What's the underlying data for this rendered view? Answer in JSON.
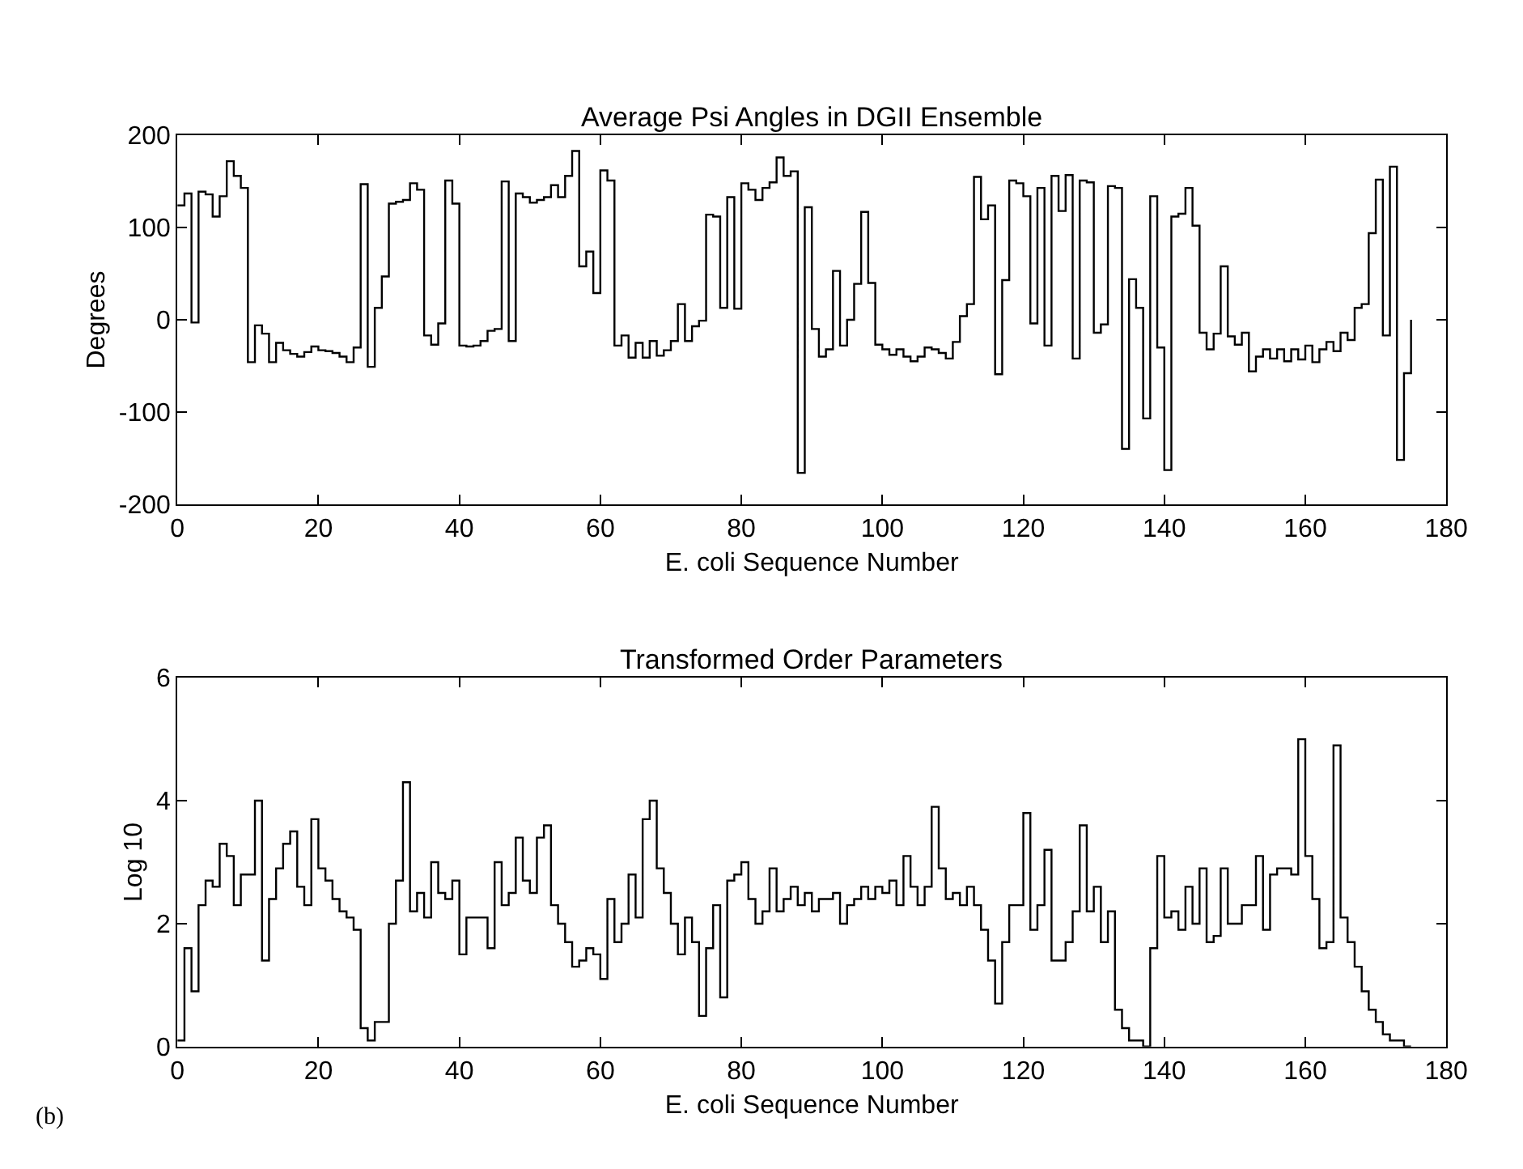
{
  "chart_data": [
    {
      "type": "step",
      "title": "Average Psi Angles in DGII Ensemble",
      "xlabel": "E. coli Sequence Number",
      "ylabel": "Degrees",
      "xlim": [
        0,
        180
      ],
      "xticks": [
        0,
        20,
        40,
        60,
        80,
        100,
        120,
        140,
        160,
        180
      ],
      "ylim": [
        -200,
        200
      ],
      "yticks": [
        -200,
        -100,
        0,
        100,
        200
      ],
      "marker": "none",
      "line_style": "solid",
      "x": [
        0,
        1,
        2,
        3,
        4,
        5,
        6,
        7,
        8,
        9,
        10,
        11,
        12,
        13,
        14,
        15,
        16,
        17,
        18,
        19,
        20,
        21,
        22,
        23,
        24,
        25,
        26,
        27,
        28,
        29,
        30,
        31,
        32,
        33,
        34,
        35,
        36,
        37,
        38,
        39,
        40,
        41,
        42,
        43,
        44,
        45,
        46,
        47,
        48,
        49,
        50,
        51,
        52,
        53,
        54,
        55,
        56,
        57,
        58,
        59,
        60,
        61,
        62,
        63,
        64,
        65,
        66,
        67,
        68,
        69,
        70,
        71,
        72,
        73,
        74,
        75,
        76,
        77,
        78,
        79,
        80,
        81,
        82,
        83,
        84,
        85,
        86,
        87,
        88,
        89,
        90,
        91,
        92,
        93,
        94,
        95,
        96,
        97,
        98,
        99,
        100,
        101,
        102,
        103,
        104,
        105,
        106,
        107,
        108,
        109,
        110,
        111,
        112,
        113,
        114,
        115,
        116,
        117,
        118,
        119,
        120,
        121,
        122,
        123,
        124,
        125,
        126,
        127,
        128,
        129,
        130,
        131,
        132,
        133,
        134,
        135,
        136,
        137,
        138,
        139,
        140,
        141,
        142,
        143,
        144,
        145,
        146,
        147,
        148,
        149,
        150,
        151,
        152,
        153,
        154,
        155,
        156,
        157,
        158,
        159,
        160,
        161,
        162,
        163,
        164,
        165,
        166,
        167,
        168,
        169,
        170,
        171,
        172,
        173,
        174,
        175
      ],
      "series": [
        {
          "color": "#000000",
          "values": [
            124,
            137,
            -3,
            139,
            136,
            112,
            134,
            172,
            156,
            143,
            -46,
            -6,
            -15,
            -46,
            -25,
            -33,
            -37,
            -40,
            -35,
            -29,
            -33,
            -34,
            -36,
            -40,
            -46,
            -30,
            147,
            -51,
            13,
            47,
            126,
            128,
            130,
            148,
            141,
            -17,
            -27,
            -4,
            151,
            126,
            -28,
            -29,
            -28,
            -23,
            -12,
            -10,
            150,
            -23,
            137,
            133,
            127,
            130,
            133,
            146,
            133,
            156,
            183,
            58,
            74,
            29,
            162,
            151,
            -28,
            -17,
            -41,
            -25,
            -41,
            -23,
            -39,
            -33,
            -23,
            17,
            -23,
            -7,
            -1,
            114,
            112,
            13,
            133,
            12,
            148,
            141,
            130,
            143,
            149,
            176,
            156,
            161,
            -166,
            122,
            -10,
            -40,
            -32,
            53,
            -28,
            0,
            39,
            117,
            40,
            -27,
            -32,
            -38,
            -32,
            -40,
            -45,
            -40,
            -30,
            -32,
            -36,
            -42,
            -24,
            4,
            17,
            155,
            109,
            124,
            -59,
            43,
            151,
            148,
            134,
            -4,
            143,
            -28,
            156,
            118,
            157,
            -42,
            151,
            149,
            -14,
            -5,
            145,
            143,
            -140,
            44,
            13,
            -107,
            134,
            -30,
            -163,
            112,
            115,
            143,
            102,
            -14,
            -32,
            -15,
            58,
            -18,
            -27,
            -14,
            -56,
            -40,
            -32,
            -42,
            -32,
            -45,
            -32,
            -43,
            -28,
            -46,
            -32,
            -24,
            -34,
            -14,
            -22,
            13,
            17,
            94,
            152,
            -17,
            166,
            -152,
            -58,
            0
          ]
        }
      ]
    },
    {
      "type": "step",
      "title": "Transformed Order Parameters",
      "xlabel": "E. coli Sequence Number",
      "ylabel": "Log 10",
      "xlim": [
        0,
        180
      ],
      "xticks": [
        0,
        20,
        40,
        60,
        80,
        100,
        120,
        140,
        160,
        180
      ],
      "ylim": [
        0,
        6
      ],
      "yticks": [
        0,
        2,
        4,
        6
      ],
      "marker": "none",
      "line_style": "solid",
      "annotations": [
        "(b)"
      ],
      "x": [
        0,
        1,
        2,
        3,
        4,
        5,
        6,
        7,
        8,
        9,
        10,
        11,
        12,
        13,
        14,
        15,
        16,
        17,
        18,
        19,
        20,
        21,
        22,
        23,
        24,
        25,
        26,
        27,
        28,
        29,
        30,
        31,
        32,
        33,
        34,
        35,
        36,
        37,
        38,
        39,
        40,
        41,
        42,
        43,
        44,
        45,
        46,
        47,
        48,
        49,
        50,
        51,
        52,
        53,
        54,
        55,
        56,
        57,
        58,
        59,
        60,
        61,
        62,
        63,
        64,
        65,
        66,
        67,
        68,
        69,
        70,
        71,
        72,
        73,
        74,
        75,
        76,
        77,
        78,
        79,
        80,
        81,
        82,
        83,
        84,
        85,
        86,
        87,
        88,
        89,
        90,
        91,
        92,
        93,
        94,
        95,
        96,
        97,
        98,
        99,
        100,
        101,
        102,
        103,
        104,
        105,
        106,
        107,
        108,
        109,
        110,
        111,
        112,
        113,
        114,
        115,
        116,
        117,
        118,
        119,
        120,
        121,
        122,
        123,
        124,
        125,
        126,
        127,
        128,
        129,
        130,
        131,
        132,
        133,
        134,
        135,
        136,
        137,
        138,
        139,
        140,
        141,
        142,
        143,
        144,
        145,
        146,
        147,
        148,
        149,
        150,
        151,
        152,
        153,
        154,
        155,
        156,
        157,
        158,
        159,
        160,
        161,
        162,
        163,
        164,
        165,
        166,
        167,
        168,
        169,
        170,
        171,
        172,
        173,
        174,
        175
      ],
      "series": [
        {
          "color": "#000000",
          "values": [
            0.1,
            1.6,
            0.9,
            2.3,
            2.7,
            2.6,
            3.3,
            3.1,
            2.3,
            2.8,
            2.8,
            4.0,
            1.4,
            2.4,
            2.9,
            3.3,
            3.5,
            2.6,
            2.3,
            3.7,
            2.9,
            2.7,
            2.4,
            2.2,
            2.1,
            1.9,
            0.3,
            0.1,
            0.4,
            0.4,
            2.0,
            2.7,
            4.3,
            2.2,
            2.5,
            2.1,
            3.0,
            2.5,
            2.4,
            2.7,
            1.5,
            2.1,
            2.1,
            2.1,
            1.6,
            3.0,
            2.3,
            2.5,
            3.4,
            2.7,
            2.5,
            3.4,
            3.6,
            2.3,
            2.0,
            1.7,
            1.3,
            1.4,
            1.6,
            1.5,
            1.1,
            2.4,
            1.7,
            2.0,
            2.8,
            2.1,
            3.7,
            4.0,
            2.9,
            2.5,
            2.0,
            1.5,
            2.1,
            1.7,
            0.5,
            1.6,
            2.3,
            0.8,
            2.7,
            2.8,
            3.0,
            2.4,
            2.0,
            2.2,
            2.9,
            2.2,
            2.4,
            2.6,
            2.3,
            2.5,
            2.2,
            2.4,
            2.4,
            2.5,
            2.0,
            2.3,
            2.4,
            2.6,
            2.4,
            2.6,
            2.5,
            2.7,
            2.3,
            3.1,
            2.6,
            2.3,
            2.6,
            3.9,
            2.9,
            2.4,
            2.5,
            2.3,
            2.6,
            2.3,
            1.9,
            1.4,
            0.7,
            1.7,
            2.3,
            2.3,
            3.8,
            1.9,
            2.3,
            3.2,
            1.4,
            1.4,
            1.7,
            2.2,
            3.6,
            2.2,
            2.6,
            1.7,
            2.2,
            0.6,
            0.3,
            0.1,
            0.1,
            0.0,
            1.6,
            3.1,
            2.1,
            2.2,
            1.9,
            2.6,
            2.0,
            2.9,
            1.7,
            1.8,
            2.9,
            2.0,
            2.0,
            2.3,
            2.3,
            3.1,
            1.9,
            2.8,
            2.9,
            2.9,
            2.8,
            5.0,
            3.1,
            2.4,
            1.6,
            1.7,
            4.9,
            2.1,
            1.7,
            1.3,
            0.9,
            0.6,
            0.4,
            0.2,
            0.1,
            0.1,
            0.0,
            0.0
          ]
        }
      ]
    }
  ]
}
